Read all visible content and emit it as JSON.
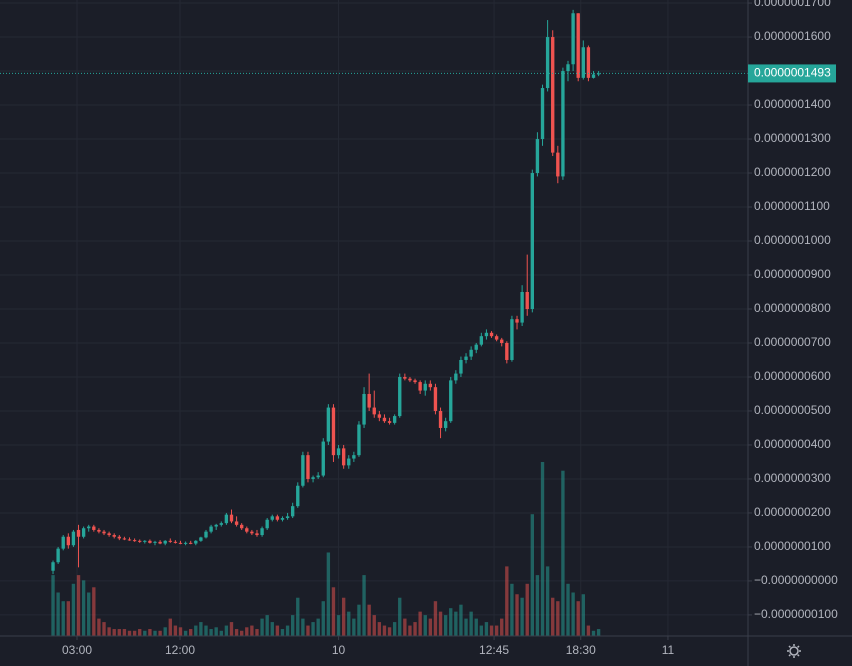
{
  "chart_data": {
    "type": "candlestick",
    "grid": true,
    "colors": {
      "up": "#26a69a",
      "down": "#ef5350"
    },
    "ylim": [
      -1.62e-08,
      1.709e-07
    ],
    "yticks": [
      {
        "value": 1.7e-07,
        "label": "0.0000001700"
      },
      {
        "value": 1.6e-07,
        "label": "0.0000001600"
      },
      {
        "value": 1.5e-07,
        "label": "0.0000001500"
      },
      {
        "value": 1.4e-07,
        "label": "0.0000001400"
      },
      {
        "value": 1.3e-07,
        "label": "0.0000001300"
      },
      {
        "value": 1.2e-07,
        "label": "0.0000001200"
      },
      {
        "value": 1.1e-07,
        "label": "0.0000001100"
      },
      {
        "value": 1e-07,
        "label": "0.0000001000"
      },
      {
        "value": 9e-08,
        "label": "0.0000000900"
      },
      {
        "value": 8e-08,
        "label": "0.0000000800"
      },
      {
        "value": 7e-08,
        "label": "0.0000000700"
      },
      {
        "value": 6e-08,
        "label": "0.0000000600"
      },
      {
        "value": 5e-08,
        "label": "0.0000000500"
      },
      {
        "value": 4e-08,
        "label": "0.0000000400"
      },
      {
        "value": 3e-08,
        "label": "0.0000000300"
      },
      {
        "value": 2e-08,
        "label": "0.0000000200"
      },
      {
        "value": 1e-08,
        "label": "0.0000000100"
      },
      {
        "value": 0,
        "label": "−0.0000000000"
      },
      {
        "value": -1e-08,
        "label": "−0.0000000100"
      }
    ],
    "xlim": [
      -10.4,
      136.3
    ],
    "xticks": [
      {
        "value": 4.7,
        "label": "03:00"
      },
      {
        "value": 24.9,
        "label": "12:00"
      },
      {
        "value": 56,
        "label": "10"
      },
      {
        "value": 86.5,
        "label": "12:45"
      },
      {
        "value": 103.5,
        "label": "18:30"
      },
      {
        "value": 120.6,
        "label": "11"
      }
    ],
    "last_price": {
      "value": 1.493e-07,
      "label": "0.0000001493"
    },
    "candles": [
      [
        3e-09,
        6e-09,
        2e-09,
        5.5e-09
      ],
      [
        5.5e-09,
        1e-08,
        5e-09,
        9.5e-09
      ],
      [
        9.5e-09,
        1.35e-08,
        9e-09,
        1.3e-08
      ],
      [
        1.3e-08,
        1.4e-08,
        9.5e-09,
        1.05e-08
      ],
      [
        1.05e-08,
        1.5e-08,
        1e-08,
        1.45e-08
      ],
      [
        1.5e-08,
        1.65e-08,
        4e-09,
        1.3e-08
      ],
      [
        1.3e-08,
        1.6e-08,
        1.25e-08,
        1.55e-08
      ],
      [
        1.55e-08,
        1.65e-08,
        1.45e-08,
        1.6e-08
      ],
      [
        1.6e-08,
        1.65e-08,
        1.45e-08,
        1.5e-08
      ],
      [
        1.5e-08,
        1.55e-08,
        1.4e-08,
        1.45e-08
      ],
      [
        1.45e-08,
        1.5e-08,
        1.35e-08,
        1.4e-08
      ],
      [
        1.4e-08,
        1.45e-08,
        1.3e-08,
        1.35e-08
      ],
      [
        1.35e-08,
        1.4e-08,
        1.25e-08,
        1.3e-08
      ],
      [
        1.3e-08,
        1.35e-08,
        1.2e-08,
        1.25e-08
      ],
      [
        1.25e-08,
        1.3e-08,
        1.2e-08,
        1.22e-08
      ],
      [
        1.22e-08,
        1.28e-08,
        1.18e-08,
        1.2e-08
      ],
      [
        1.2e-08,
        1.25e-08,
        1.15e-08,
        1.18e-08
      ],
      [
        1.18e-08,
        1.22e-08,
        1.12e-08,
        1.15e-08
      ],
      [
        1.15e-08,
        1.2e-08,
        1.1e-08,
        1.18e-08
      ],
      [
        1.18e-08,
        1.22e-08,
        1.1e-08,
        1.12e-08
      ],
      [
        1.12e-08,
        1.18e-08,
        1.05e-08,
        1.15e-08
      ],
      [
        1.15e-08,
        1.2e-08,
        1.08e-08,
        1.1e-08
      ],
      [
        1.1e-08,
        1.2e-08,
        1.05e-08,
        1.18e-08
      ],
      [
        1.18e-08,
        1.25e-08,
        1.12e-08,
        1.15e-08
      ],
      [
        1.15e-08,
        1.2e-08,
        1.1e-08,
        1.12e-08
      ],
      [
        1.12e-08,
        1.18e-08,
        1.08e-08,
        1.1e-08
      ],
      [
        1.1e-08,
        1.16e-08,
        1.05e-08,
        1.12e-08
      ],
      [
        1.12e-08,
        1.18e-08,
        1.08e-08,
        1.1e-08
      ],
      [
        1.1e-08,
        1.2e-08,
        1.05e-08,
        1.18e-08
      ],
      [
        1.18e-08,
        1.3e-08,
        1.15e-08,
        1.28e-08
      ],
      [
        1.28e-08,
        1.5e-08,
        1.25e-08,
        1.45e-08
      ],
      [
        1.45e-08,
        1.65e-08,
        1.4e-08,
        1.6e-08
      ],
      [
        1.6e-08,
        1.68e-08,
        1.5e-08,
        1.65e-08
      ],
      [
        1.65e-08,
        1.75e-08,
        1.6e-08,
        1.7e-08
      ],
      [
        1.7e-08,
        2e-08,
        1.65e-08,
        1.95e-08
      ],
      [
        1.95e-08,
        2.1e-08,
        1.7e-08,
        1.75e-08
      ],
      [
        1.75e-08,
        1.9e-08,
        1.6e-08,
        1.65e-08
      ],
      [
        1.65e-08,
        1.7e-08,
        1.5e-08,
        1.55e-08
      ],
      [
        1.55e-08,
        1.6e-08,
        1.4e-08,
        1.45e-08
      ],
      [
        1.45e-08,
        1.5e-08,
        1.35e-08,
        1.4e-08
      ],
      [
        1.4e-08,
        1.5e-08,
        1.3e-08,
        1.35e-08
      ],
      [
        1.35e-08,
        1.6e-08,
        1.3e-08,
        1.55e-08
      ],
      [
        1.55e-08,
        1.85e-08,
        1.5e-08,
        1.8e-08
      ],
      [
        1.8e-08,
        1.95e-08,
        1.75e-08,
        1.9e-08
      ],
      [
        1.9e-08,
        1.95e-08,
        1.75e-08,
        1.8e-08
      ],
      [
        1.8e-08,
        1.9e-08,
        1.75e-08,
        1.85e-08
      ],
      [
        1.85e-08,
        2e-08,
        1.8e-08,
        1.9e-08
      ],
      [
        1.9e-08,
        2.3e-08,
        1.85e-08,
        2.2e-08
      ],
      [
        2.2e-08,
        2.9e-08,
        2.15e-08,
        2.8e-08
      ],
      [
        2.8e-08,
        3.8e-08,
        2.75e-08,
        3.7e-08
      ],
      [
        3.7e-08,
        3.8e-08,
        2.9e-08,
        3e-08
      ],
      [
        3e-08,
        3.1e-08,
        2.9e-08,
        3.05e-08
      ],
      [
        3.05e-08,
        3.2e-08,
        3e-08,
        3.1e-08
      ],
      [
        3.1e-08,
        4.2e-08,
        3.05e-08,
        4.1e-08
      ],
      [
        4.1e-08,
        5.2e-08,
        4e-08,
        5.1e-08
      ],
      [
        5.1e-08,
        5.2e-08,
        3.5e-08,
        3.7e-08
      ],
      [
        3.7e-08,
        4e-08,
        3.6e-08,
        3.9e-08
      ],
      [
        3.9e-08,
        4e-08,
        3.3e-08,
        3.4e-08
      ],
      [
        3.4e-08,
        3.7e-08,
        3.3e-08,
        3.6e-08
      ],
      [
        3.6e-08,
        3.8e-08,
        3.5e-08,
        3.7e-08
      ],
      [
        3.7e-08,
        4.7e-08,
        3.65e-08,
        4.6e-08
      ],
      [
        4.6e-08,
        5.7e-08,
        4.5e-08,
        5.5e-08
      ],
      [
        5.5e-08,
        6.1e-08,
        5e-08,
        5.1e-08
      ],
      [
        5.1e-08,
        5.6e-08,
        4.8e-08,
        4.9e-08
      ],
      [
        4.9e-08,
        5e-08,
        4.7e-08,
        4.8e-08
      ],
      [
        4.8e-08,
        4.9e-08,
        4.65e-08,
        4.7e-08
      ],
      [
        4.7e-08,
        4.8e-08,
        4.6e-08,
        4.65e-08
      ],
      [
        4.65e-08,
        4.9e-08,
        4.6e-08,
        4.85e-08
      ],
      [
        4.85e-08,
        6.1e-08,
        4.8e-08,
        6e-08
      ],
      [
        6e-08,
        6.1e-08,
        5.9e-08,
        5.95e-08
      ],
      [
        5.95e-08,
        6e-08,
        5.85e-08,
        5.9e-08
      ],
      [
        5.9e-08,
        5.95e-08,
        5.8e-08,
        5.85e-08
      ],
      [
        5.85e-08,
        5.9e-08,
        5.5e-08,
        5.6e-08
      ],
      [
        5.6e-08,
        5.9e-08,
        5.45e-08,
        5.8e-08
      ],
      [
        5.8e-08,
        5.9e-08,
        5.6e-08,
        5.7e-08
      ],
      [
        5.7e-08,
        5.8e-08,
        4.9e-08,
        5e-08
      ],
      [
        5e-08,
        5.1e-08,
        4.2e-08,
        4.5e-08
      ],
      [
        4.5e-08,
        4.8e-08,
        4.4e-08,
        4.7e-08
      ],
      [
        4.7e-08,
        6e-08,
        4.65e-08,
        5.9e-08
      ],
      [
        5.9e-08,
        6.2e-08,
        5.8e-08,
        6.1e-08
      ],
      [
        6.1e-08,
        6.6e-08,
        6e-08,
        6.5e-08
      ],
      [
        6.5e-08,
        6.7e-08,
        6.4e-08,
        6.6e-08
      ],
      [
        6.6e-08,
        6.9e-08,
        6.5e-08,
        6.8e-08
      ],
      [
        6.8e-08,
        7e-08,
        6.7e-08,
        6.95e-08
      ],
      [
        6.95e-08,
        7.3e-08,
        6.9e-08,
        7.2e-08
      ],
      [
        7.2e-08,
        7.4e-08,
        7.1e-08,
        7.3e-08
      ],
      [
        7.3e-08,
        7.35e-08,
        7.15e-08,
        7.2e-08
      ],
      [
        7.2e-08,
        7.25e-08,
        7.05e-08,
        7.1e-08
      ],
      [
        7.1e-08,
        7.15e-08,
        6.9e-08,
        7e-08
      ],
      [
        7e-08,
        7.05e-08,
        6.4e-08,
        6.5e-08
      ],
      [
        6.5e-08,
        7.8e-08,
        6.45e-08,
        7.7e-08
      ],
      [
        7.7e-08,
        7.8e-08,
        7.4e-08,
        7.6e-08
      ],
      [
        7.6e-08,
        8.7e-08,
        7.5e-08,
        8.5e-08
      ],
      [
        8.5e-08,
        9.6e-08,
        7.8e-08,
        8e-08
      ],
      [
        8e-08,
        1.21e-07,
        7.9e-08,
        1.2e-07
      ],
      [
        1.2e-07,
        1.32e-07,
        1.19e-07,
        1.3e-07
      ],
      [
        1.3e-07,
        1.46e-07,
        1.28e-07,
        1.45e-07
      ],
      [
        1.45e-07,
        1.65e-07,
        1.44e-07,
        1.6e-07
      ],
      [
        1.6e-07,
        1.62e-07,
        1.25e-07,
        1.26e-07
      ],
      [
        1.26e-07,
        1.28e-07,
        1.17e-07,
        1.19e-07
      ],
      [
        1.19e-07,
        1.51e-07,
        1.18e-07,
        1.5e-07
      ],
      [
        1.5e-07,
        1.53e-07,
        1.47e-07,
        1.52e-07
      ],
      [
        1.52e-07,
        1.68e-07,
        1.5e-07,
        1.67e-07
      ],
      [
        1.67e-07,
        1.67e-07,
        1.47e-07,
        1.48e-07
      ],
      [
        1.48e-07,
        1.59e-07,
        1.475e-07,
        1.57e-07
      ],
      [
        1.57e-07,
        1.575e-07,
        1.47e-07,
        1.48e-07
      ],
      [
        1.48e-07,
        1.5e-07,
        1.478e-07,
        1.49e-07
      ],
      [
        1.49e-07,
        1.5e-07,
        1.485e-07,
        1.493e-07
      ]
    ],
    "volume": [
      35,
      25,
      20,
      20,
      30,
      35,
      32,
      25,
      28,
      10,
      8,
      5,
      4,
      4,
      4,
      3,
      3,
      4,
      3,
      4,
      3,
      3,
      5,
      10,
      6,
      5,
      3,
      4,
      6,
      8,
      6,
      4,
      5,
      3,
      6,
      8,
      4,
      3,
      5,
      6,
      4,
      10,
      12,
      8,
      6,
      4,
      6,
      12,
      22,
      10,
      6,
      8,
      10,
      20,
      48,
      28,
      12,
      22,
      14,
      10,
      18,
      35,
      18,
      12,
      8,
      6,
      5,
      8,
      22,
      10,
      6,
      8,
      14,
      12,
      10,
      20,
      14,
      12,
      16,
      14,
      18,
      10,
      14,
      10,
      6,
      8,
      6,
      6,
      10,
      40,
      30,
      24,
      22,
      30,
      70,
      35,
      100,
      40,
      22,
      20,
      95,
      30,
      25,
      20,
      24,
      6,
      3,
      4
    ]
  }
}
